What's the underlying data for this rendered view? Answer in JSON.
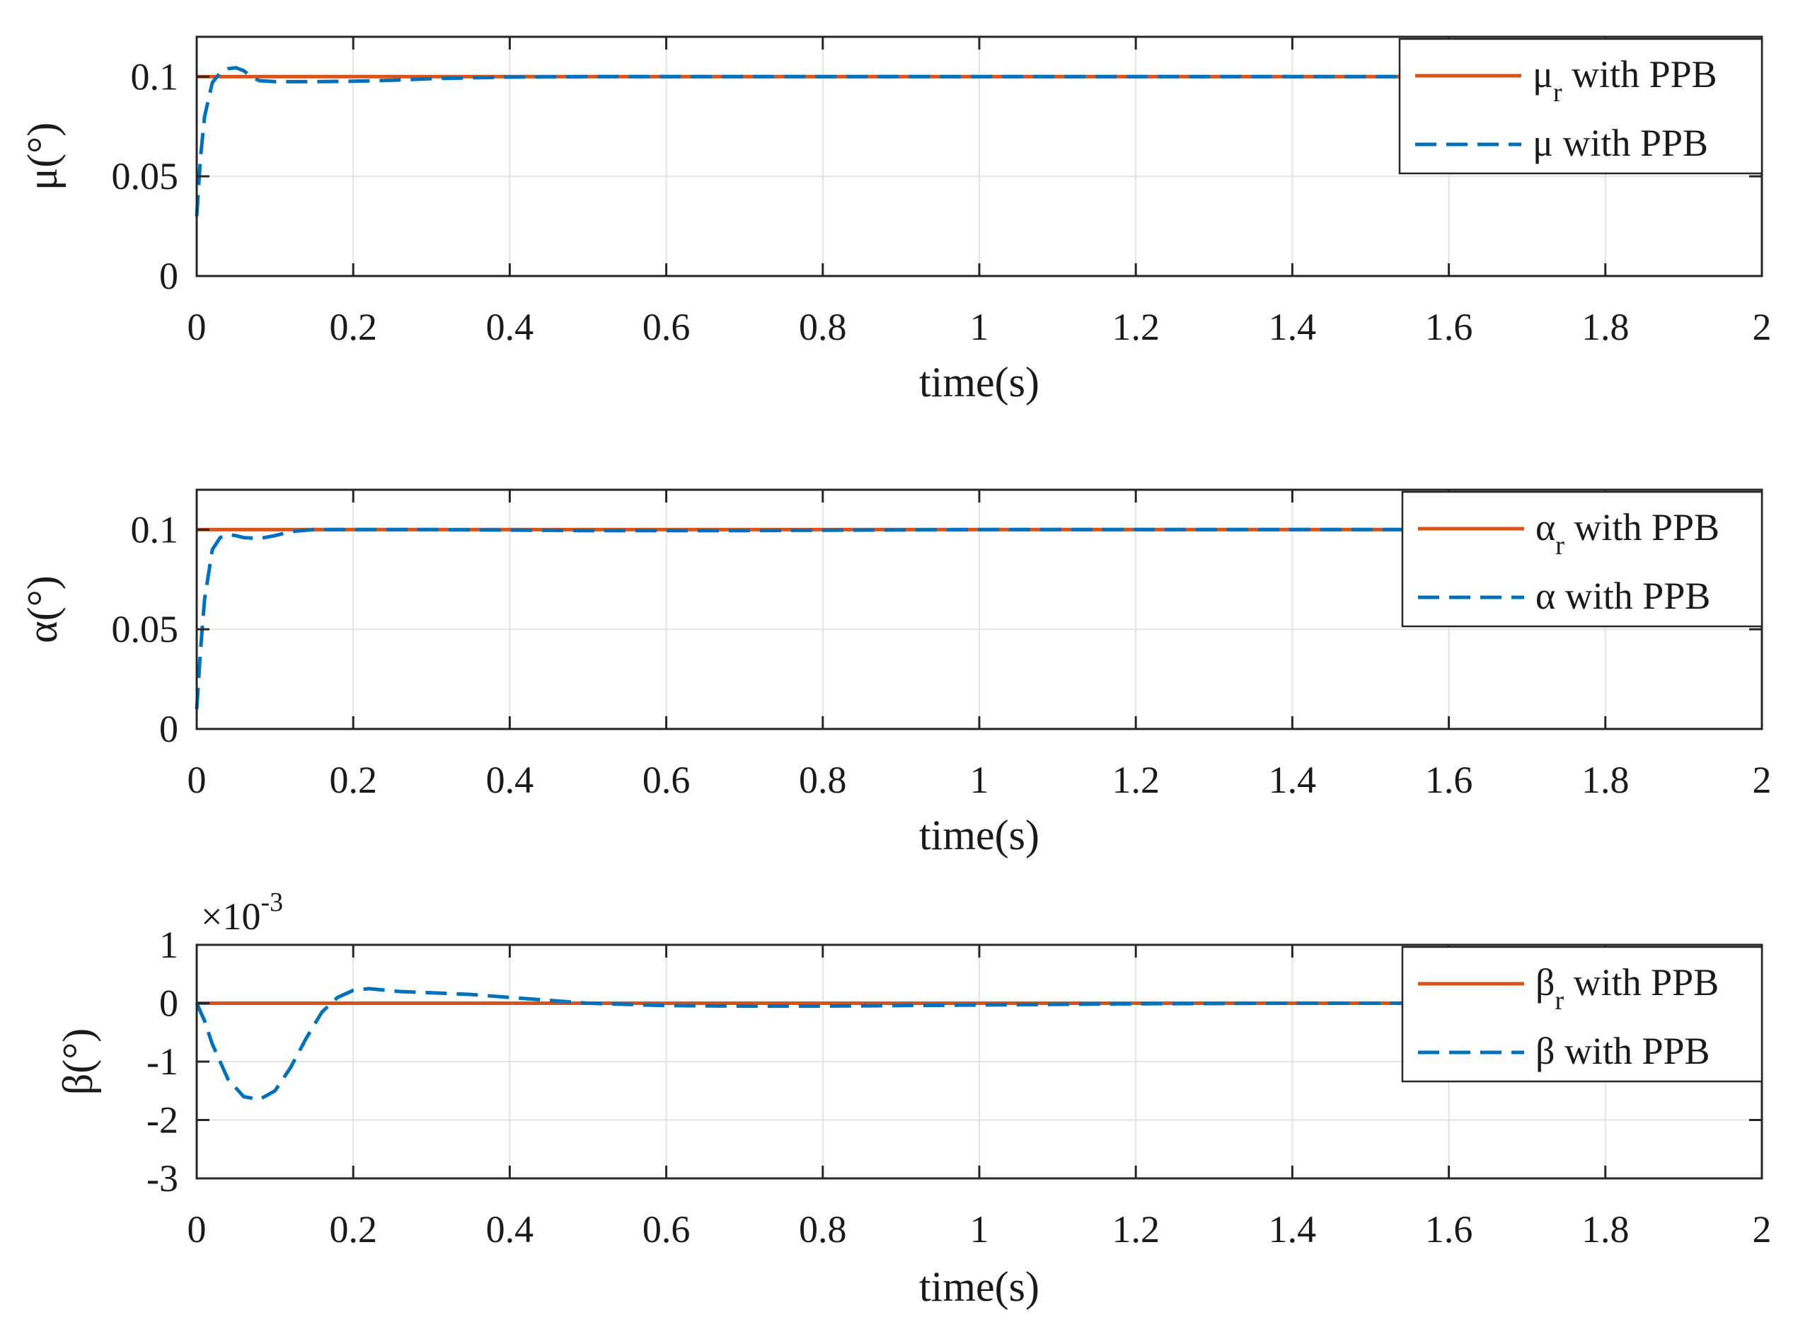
{
  "chart_data": [
    {
      "type": "line",
      "xlabel": "time(s)",
      "ylabel": "μ(°)",
      "xlim": [
        0,
        2
      ],
      "ylim": [
        0,
        0.12
      ],
      "xticks": [
        0,
        0.2,
        0.4,
        0.6,
        0.8,
        1,
        1.2,
        1.4,
        1.6,
        1.8,
        2
      ],
      "xtick_labels": [
        "0",
        "0.2",
        "0.4",
        "0.6",
        "0.8",
        "1",
        "1.2",
        "1.4",
        "1.6",
        "1.8",
        "2"
      ],
      "yticks": [
        0,
        0.05,
        0.1
      ],
      "ytick_labels": [
        "0",
        "0.05",
        "0.1"
      ],
      "grid": true,
      "legend_position": "top-right",
      "series": [
        {
          "name": "μr with PPB",
          "legend_main": "μ",
          "legend_sub": "r",
          "legend_rest": " with PPB",
          "color": "#d95319",
          "dash": "solid",
          "x": [
            0,
            2
          ],
          "y": [
            0.1,
            0.1
          ]
        },
        {
          "name": "μ with PPB",
          "legend_main": "μ",
          "legend_sub": "",
          "legend_rest": " with PPB",
          "color": "#0072bd",
          "dash": "dashed",
          "x": [
            0,
            0.005,
            0.01,
            0.02,
            0.03,
            0.04,
            0.05,
            0.06,
            0.07,
            0.08,
            0.1,
            0.15,
            0.2,
            0.25,
            0.3,
            0.4,
            0.5,
            0.7,
            1.0,
            1.3,
            1.55,
            2.0
          ],
          "y": [
            0.03,
            0.06,
            0.08,
            0.097,
            0.102,
            0.104,
            0.1045,
            0.103,
            0.1,
            0.098,
            0.0975,
            0.0975,
            0.0977,
            0.0982,
            0.099,
            0.0998,
            0.1,
            0.1,
            0.1,
            0.1,
            0.1,
            0.1
          ]
        }
      ]
    },
    {
      "type": "line",
      "xlabel": "time(s)",
      "ylabel": "α(°)",
      "xlim": [
        0,
        2
      ],
      "ylim": [
        0,
        0.12
      ],
      "xticks": [
        0,
        0.2,
        0.4,
        0.6,
        0.8,
        1,
        1.2,
        1.4,
        1.6,
        1.8,
        2
      ],
      "xtick_labels": [
        "0",
        "0.2",
        "0.4",
        "0.6",
        "0.8",
        "1",
        "1.2",
        "1.4",
        "1.6",
        "1.8",
        "2"
      ],
      "yticks": [
        0,
        0.05,
        0.1
      ],
      "ytick_labels": [
        "0",
        "0.05",
        "0.1"
      ],
      "grid": true,
      "legend_position": "top-right",
      "series": [
        {
          "name": "αr with PPB",
          "legend_main": "α",
          "legend_sub": "r",
          "legend_rest": " with PPB",
          "color": "#d95319",
          "dash": "solid",
          "x": [
            0,
            2
          ],
          "y": [
            0.1,
            0.1
          ]
        },
        {
          "name": "α with PPB",
          "legend_main": "α",
          "legend_sub": "",
          "legend_rest": " with PPB",
          "color": "#0072bd",
          "dash": "dashed",
          "x": [
            0,
            0.005,
            0.01,
            0.02,
            0.03,
            0.04,
            0.05,
            0.06,
            0.08,
            0.1,
            0.12,
            0.15,
            0.2,
            0.3,
            0.5,
            0.7,
            1.0,
            1.3,
            1.55,
            2.0
          ],
          "y": [
            0.01,
            0.04,
            0.065,
            0.09,
            0.096,
            0.0975,
            0.097,
            0.096,
            0.0955,
            0.097,
            0.099,
            0.1,
            0.1,
            0.1,
            0.0995,
            0.0995,
            0.1,
            0.1,
            0.1,
            0.1
          ]
        }
      ]
    },
    {
      "type": "line",
      "xlabel": "time(s)",
      "ylabel": "β(°)",
      "exponent_label": "×10",
      "exponent_power": "-3",
      "xlim": [
        0,
        2
      ],
      "ylim": [
        -3,
        1
      ],
      "xticks": [
        0,
        0.2,
        0.4,
        0.6,
        0.8,
        1,
        1.2,
        1.4,
        1.6,
        1.8,
        2
      ],
      "xtick_labels": [
        "0",
        "0.2",
        "0.4",
        "0.6",
        "0.8",
        "1",
        "1.2",
        "1.4",
        "1.6",
        "1.8",
        "2"
      ],
      "yticks": [
        -3,
        -2,
        -1,
        0,
        1
      ],
      "ytick_labels": [
        "-3",
        "-2",
        "-1",
        "0",
        "1"
      ],
      "grid": true,
      "legend_position": "top-right",
      "series": [
        {
          "name": "βr with PPB",
          "legend_main": "β",
          "legend_sub": "r",
          "legend_rest": " with PPB",
          "color": "#d95319",
          "dash": "solid",
          "x": [
            0,
            2
          ],
          "y": [
            0,
            0
          ]
        },
        {
          "name": "β with PPB",
          "legend_main": "β",
          "legend_sub": "",
          "legend_rest": " with PPB",
          "color": "#0072bd",
          "dash": "dashed",
          "x": [
            0,
            0.01,
            0.02,
            0.04,
            0.06,
            0.08,
            0.1,
            0.12,
            0.14,
            0.16,
            0.18,
            0.2,
            0.22,
            0.26,
            0.3,
            0.35,
            0.4,
            0.45,
            0.5,
            0.6,
            0.7,
            0.8,
            0.9,
            1.0,
            1.2,
            1.4,
            1.55,
            2.0
          ],
          "y": [
            0,
            -0.3,
            -0.7,
            -1.3,
            -1.6,
            -1.65,
            -1.5,
            -1.1,
            -0.6,
            -0.15,
            0.1,
            0.22,
            0.25,
            0.2,
            0.18,
            0.15,
            0.1,
            0.05,
            0.0,
            -0.04,
            -0.05,
            -0.05,
            -0.04,
            -0.03,
            -0.01,
            0.0,
            0.0,
            0.0
          ]
        }
      ]
    }
  ]
}
